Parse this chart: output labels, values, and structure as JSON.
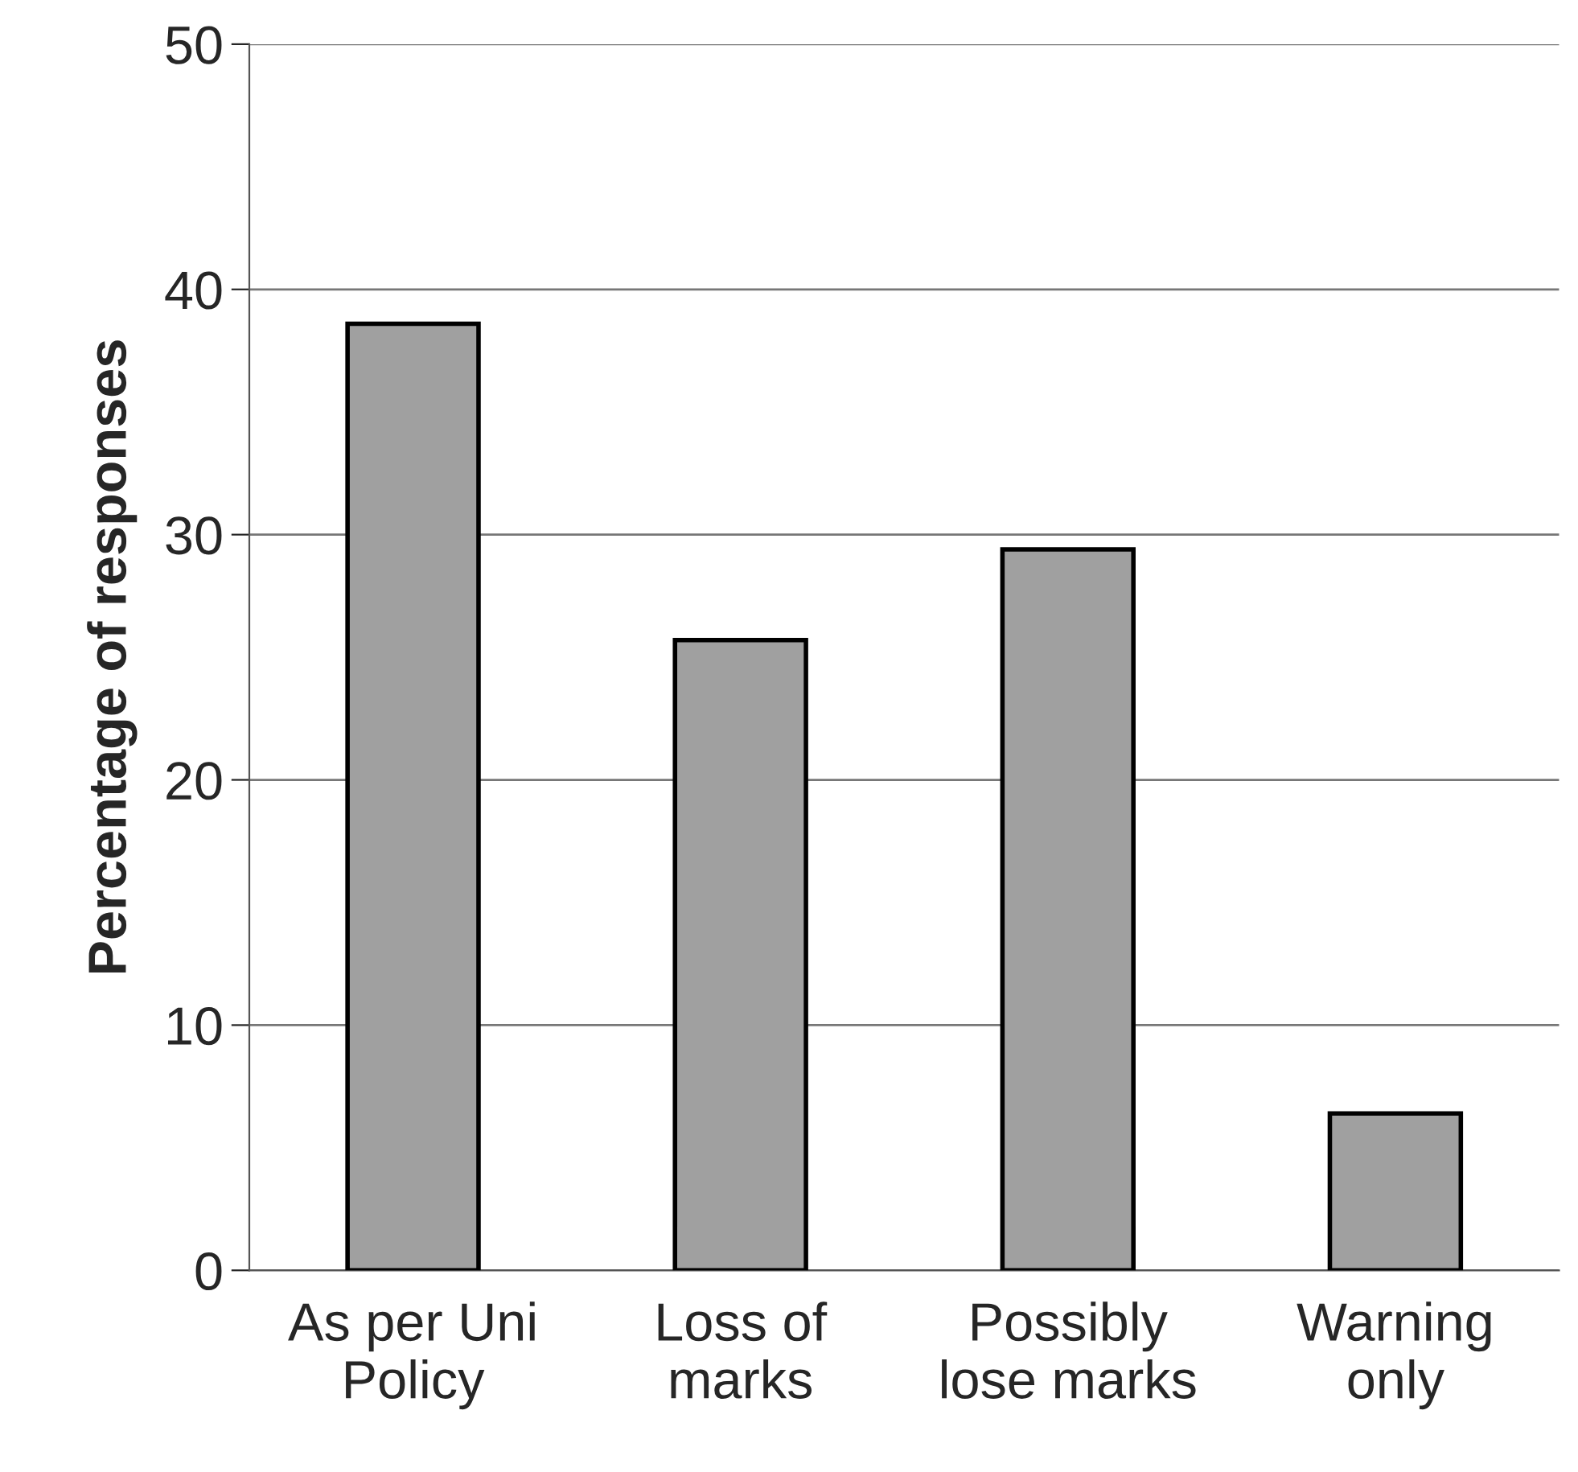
{
  "chart_data": {
    "type": "bar",
    "ylabel": "Percentage of responses",
    "categories": [
      "As per Uni\nPolicy",
      "Loss of\nmarks",
      "Possibly\nlose marks",
      "Warning\nonly"
    ],
    "values": [
      38.6,
      25.7,
      29.4,
      6.4
    ],
    "color": "#a0a0a0",
    "ylim": [
      0,
      50
    ],
    "yticks": [
      0,
      10,
      20,
      30,
      40,
      50
    ],
    "grid": "y"
  }
}
